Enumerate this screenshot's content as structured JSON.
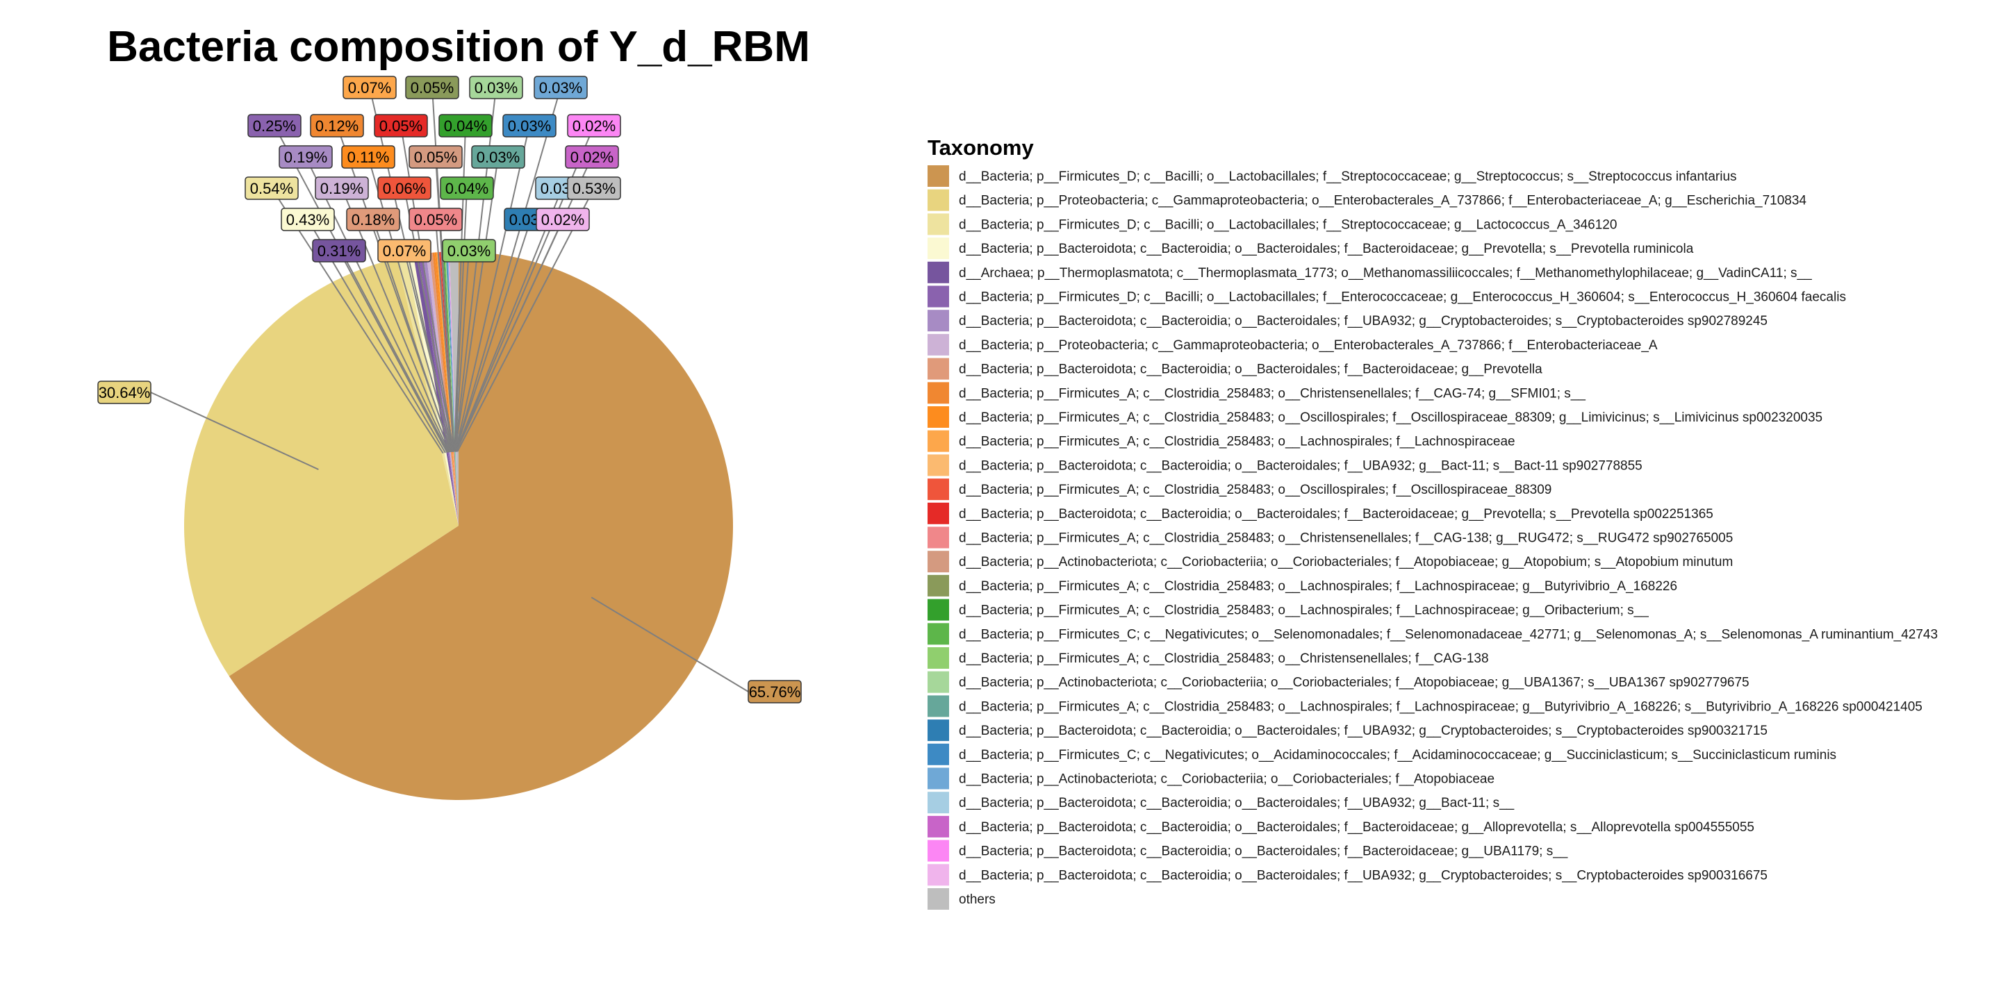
{
  "chart_data": {
    "type": "pie",
    "title": "Bacteria composition of Y_d_RBM",
    "legend_title": "Taxonomy",
    "legend_position": "right",
    "slices": [
      {
        "label": "d__Bacteria; p__Firmicutes_D; c__Bacilli; o__Lactobacillales; f__Streptococcaceae; g__Streptococcus; s__Streptococcus infantarius",
        "value": 65.76,
        "display": "65.76%",
        "color": "#CC9550"
      },
      {
        "label": "d__Bacteria; p__Proteobacteria; c__Gammaproteobacteria; o__Enterobacterales_A_737866; f__Enterobacteriaceae_A; g__Escherichia_710834",
        "value": 30.64,
        "display": "30.64%",
        "color": "#E8D47F"
      },
      {
        "label": "d__Bacteria; p__Firmicutes_D; c__Bacilli; o__Lactobacillales; f__Streptococcaceae; g__Lactococcus_A_346120",
        "value": 0.54,
        "display": "0.54%",
        "color": "#EEE39F"
      },
      {
        "label": "d__Bacteria; p__Bacteroidota; c__Bacteroidia; o__Bacteroidales; f__Bacteroidaceae; g__Prevotella; s__Prevotella ruminicola",
        "value": 0.43,
        "display": "0.43%",
        "color": "#FBF9D2"
      },
      {
        "label": "d__Archaea; p__Thermoplasmatota; c__Thermoplasmata_1773; o__Methanomassiliicoccales; f__Methanomethylophilaceae; g__VadinCA11; s__",
        "value": 0.31,
        "display": "0.31%",
        "color": "#76559E"
      },
      {
        "label": "d__Bacteria; p__Firmicutes_D; c__Bacilli; o__Lactobacillales; f__Enterococcaceae; g__Enterococcus_H_360604; s__Enterococcus_H_360604 faecalis",
        "value": 0.25,
        "display": "0.25%",
        "color": "#8A62AE"
      },
      {
        "label": "d__Bacteria; p__Bacteroidota; c__Bacteroidia; o__Bacteroidales; f__UBA932; g__Cryptobacteroides; s__Cryptobacteroides sp902789245",
        "value": 0.19,
        "display": "0.19%",
        "color": "#A78BC4"
      },
      {
        "label": "d__Bacteria; p__Proteobacteria; c__Gammaproteobacteria; o__Enterobacterales_A_737866; f__Enterobacteriaceae_A",
        "value": 0.19,
        "display": "0.19%",
        "color": "#CDB2D6"
      },
      {
        "label": "d__Bacteria; p__Bacteroidota; c__Bacteroidia; o__Bacteroidales; f__Bacteroidaceae; g__Prevotella",
        "value": 0.18,
        "display": "0.18%",
        "color": "#E09A7A"
      },
      {
        "label": "d__Bacteria; p__Firmicutes_A; c__Clostridia_258483; o__Christensenellales; f__CAG-74; g__SFMI01; s__",
        "value": 0.12,
        "display": "0.12%",
        "color": "#F08731"
      },
      {
        "label": "d__Bacteria; p__Firmicutes_A; c__Clostridia_258483; o__Oscillospirales; f__Oscillospiraceae_88309; g__Limivicinus; s__Limivicinus sp002320035",
        "value": 0.11,
        "display": "0.11%",
        "color": "#FD8C1E"
      },
      {
        "label": "d__Bacteria; p__Firmicutes_A; c__Clostridia_258483; o__Lachnospirales; f__Lachnospiraceae",
        "value": 0.07,
        "display": "0.07%",
        "color": "#FDA74B"
      },
      {
        "label": "d__Bacteria; p__Bacteroidota; c__Bacteroidia; o__Bacteroidales; f__UBA932; g__Bact-11; s__Bact-11 sp902778855",
        "value": 0.07,
        "display": "0.07%",
        "color": "#FBBA70"
      },
      {
        "label": "d__Bacteria; p__Firmicutes_A; c__Clostridia_258483; o__Oscillospirales; f__Oscillospiraceae_88309",
        "value": 0.06,
        "display": "0.06%",
        "color": "#EF553B"
      },
      {
        "label": "d__Bacteria; p__Bacteroidota; c__Bacteroidia; o__Bacteroidales; f__Bacteroidaceae; g__Prevotella; s__Prevotella sp002251365",
        "value": 0.05,
        "display": "0.05%",
        "color": "#E52A27"
      },
      {
        "label": "d__Bacteria; p__Firmicutes_A; c__Clostridia_258483; o__Christensenellales; f__CAG-138; g__RUG472; s__RUG472 sp902765005",
        "value": 0.05,
        "display": "0.05%",
        "color": "#F0878A"
      },
      {
        "label": "d__Bacteria; p__Actinobacteriota; c__Coriobacteriia; o__Coriobacteriales; f__Atopobiaceae; g__Atopobium; s__Atopobium minutum",
        "value": 0.05,
        "display": "0.05%",
        "color": "#D49A80"
      },
      {
        "label": "d__Bacteria; p__Firmicutes_A; c__Clostridia_258483; o__Lachnospirales; f__Lachnospiraceae; g__Butyrivibrio_A_168226",
        "value": 0.05,
        "display": "0.05%",
        "color": "#8A9A5A"
      },
      {
        "label": "d__Bacteria; p__Firmicutes_A; c__Clostridia_258483; o__Lachnospirales; f__Lachnospiraceae; g__Oribacterium; s__",
        "value": 0.04,
        "display": "0.04%",
        "color": "#33A02C"
      },
      {
        "label": "d__Bacteria; p__Firmicutes_C; c__Negativicutes; o__Selenomonadales; f__Selenomonadaceae_42771; g__Selenomonas_A; s__Selenomonas_A ruminantium_42743",
        "value": 0.04,
        "display": "0.04%",
        "color": "#5DB64A"
      },
      {
        "label": "d__Bacteria; p__Firmicutes_A; c__Clostridia_258483; o__Christensenellales; f__CAG-138",
        "value": 0.03,
        "display": "0.03%",
        "color": "#90CF6E"
      },
      {
        "label": "d__Bacteria; p__Actinobacteriota; c__Coriobacteriia; o__Coriobacteriales; f__Atopobiaceae; g__UBA1367; s__UBA1367 sp902779675",
        "value": 0.03,
        "display": "0.03%",
        "color": "#A6D79A"
      },
      {
        "label": "d__Bacteria; p__Firmicutes_A; c__Clostridia_258483; o__Lachnospirales; f__Lachnospiraceae; g__Butyrivibrio_A_168226; s__Butyrivibrio_A_168226 sp000421405",
        "value": 0.03,
        "display": "0.03%",
        "color": "#66A79A"
      },
      {
        "label": "d__Bacteria; p__Bacteroidota; c__Bacteroidia; o__Bacteroidales; f__UBA932; g__Cryptobacteroides; s__Cryptobacteroides sp900321715",
        "value": 0.03,
        "display": "0.03%",
        "color": "#2E7EB3"
      },
      {
        "label": "d__Bacteria; p__Firmicutes_C; c__Negativicutes; o__Acidaminococcales; f__Acidaminococcaceae; g__Succiniclasticum; s__Succiniclasticum ruminis",
        "value": 0.03,
        "display": "0.03%",
        "color": "#3D8AC4"
      },
      {
        "label": "d__Bacteria; p__Actinobacteriota; c__Coriobacteriia; o__Coriobacteriales; f__Atopobiaceae",
        "value": 0.03,
        "display": "0.03%",
        "color": "#6FA8D6"
      },
      {
        "label": "d__Bacteria; p__Bacteroidota; c__Bacteroidia; o__Bacteroidales; f__UBA932; g__Bact-11; s__",
        "value": 0.03,
        "display": "0.03%",
        "color": "#A6CEE3"
      },
      {
        "label": "d__Bacteria; p__Bacteroidota; c__Bacteroidia; o__Bacteroidales; f__Bacteroidaceae; g__Alloprevotella; s__Alloprevotella sp004555055",
        "value": 0.02,
        "display": "0.02%",
        "color": "#C864C8"
      },
      {
        "label": "d__Bacteria; p__Bacteroidota; c__Bacteroidia; o__Bacteroidales; f__Bacteroidaceae; g__UBA1179; s__",
        "value": 0.02,
        "display": "0.02%",
        "color": "#FC86F4"
      },
      {
        "label": "d__Bacteria; p__Bacteroidota; c__Bacteroidia; o__Bacteroidales; f__UBA932; g__Cryptobacteroides; s__Cryptobacteroides sp900316675",
        "value": 0.02,
        "display": "0.02%",
        "color": "#F0B4EC"
      },
      {
        "label": "others",
        "value": 0.53,
        "display": "0.53%",
        "color": "#BEBEBE"
      }
    ]
  }
}
